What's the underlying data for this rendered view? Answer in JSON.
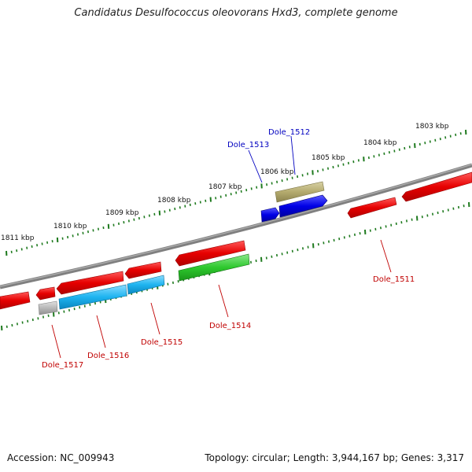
{
  "title": "Candidatus Desulfococcus oleovorans Hxd3, complete genome",
  "footer": {
    "accession": "Accession: NC_009943",
    "summary": "Topology: circular; Length: 3,944,167 bp; Genes: 3,317"
  },
  "scale_labels": [
    "1803 kbp",
    "1804 kbp",
    "1805 kbp",
    "1806 kbp",
    "1807 kbp",
    "1808 kbp",
    "1809 kbp",
    "1810 kbp",
    "1811 kbp"
  ],
  "gene_labels": [
    {
      "text": "Dole_1512",
      "color": "#0000c0"
    },
    {
      "text": "Dole_1513",
      "color": "#0000c0"
    },
    {
      "text": "Dole_1511",
      "color": "#c00000"
    },
    {
      "text": "Dole_1514",
      "color": "#c00000"
    },
    {
      "text": "Dole_1515",
      "color": "#c00000"
    },
    {
      "text": "Dole_1516",
      "color": "#c00000"
    },
    {
      "text": "Dole_1517",
      "color": "#c00000"
    }
  ],
  "colors": {
    "backbone": "#808080",
    "ticks": "#1e7a1e",
    "red": "#e60000",
    "blue": "#0000e6",
    "cyan": "#1eb4f0",
    "green": "#2ec82e",
    "olive": "#b4aa6e",
    "gray": "#b8b8b8"
  }
}
